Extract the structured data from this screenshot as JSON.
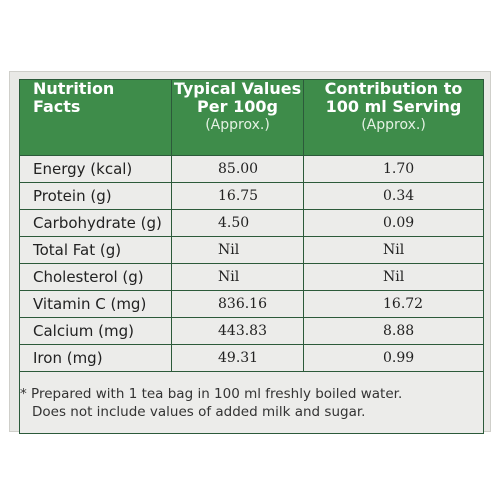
{
  "header": {
    "col1_line1": "Nutrition",
    "col1_line2": "Facts",
    "col2_line1": "Typical Values",
    "col2_line2": "Per 100g",
    "col2_approx": "(Approx.)",
    "col3_line1": "Contribution to",
    "col3_line2": "100 ml Serving",
    "col3_approx": "(Approx.)"
  },
  "rows": [
    {
      "nutrient": "Energy (kcal)",
      "per_100g": "85.00",
      "per_serving": "1.70"
    },
    {
      "nutrient": "Protein (g)",
      "per_100g": "16.75",
      "per_serving": "0.34"
    },
    {
      "nutrient": "Carbohydrate (g)",
      "per_100g": "4.50",
      "per_serving": "0.09"
    },
    {
      "nutrient": "Total Fat (g)",
      "per_100g": "Nil",
      "per_serving": "Nil"
    },
    {
      "nutrient": "Cholesterol (g)",
      "per_100g": "Nil",
      "per_serving": "Nil"
    },
    {
      "nutrient": "Vitamin C (mg)",
      "per_100g": "836.16",
      "per_serving": "16.72"
    },
    {
      "nutrient": "Calcium (mg)",
      "per_100g": "443.83",
      "per_serving": "8.88"
    },
    {
      "nutrient": "Iron (mg)",
      "per_100g": "49.31",
      "per_serving": "0.99"
    }
  ],
  "footnote": {
    "line1": "* Prepared with 1 tea bag in 100 ml freshly boiled water.",
    "line2": "Does not include values of added milk and sugar."
  },
  "colors": {
    "header_green": "#3e8c4a",
    "border_green": "#2c5a3a",
    "cell_background": "#ececea"
  }
}
